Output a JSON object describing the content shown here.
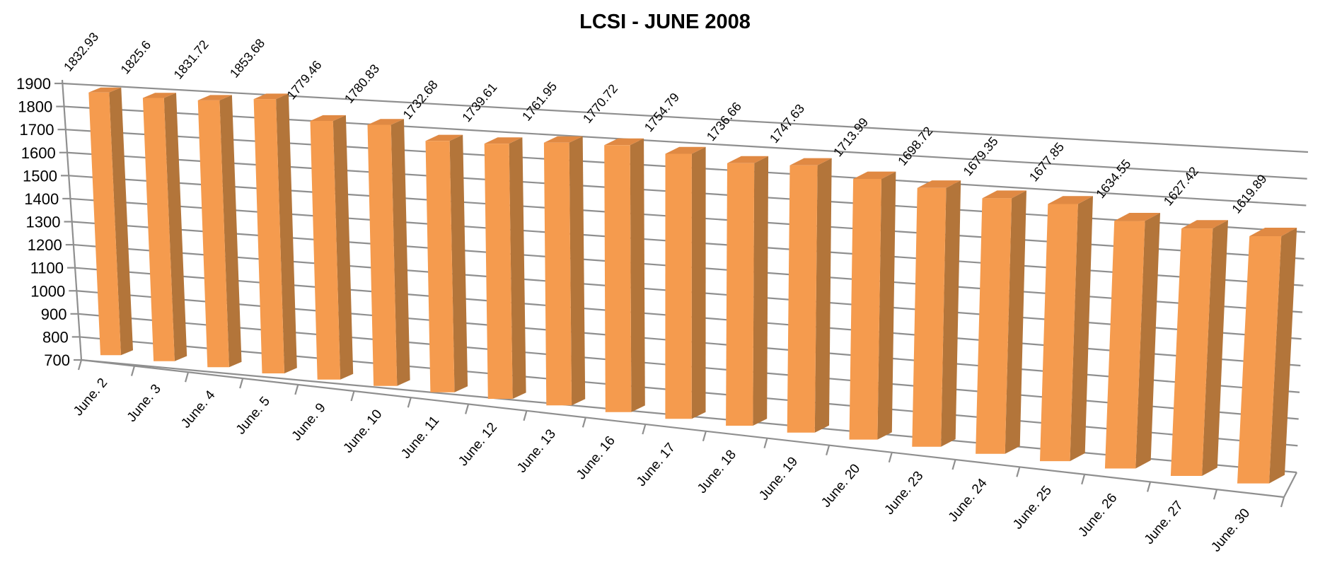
{
  "title": "LCSI - JUNE 2008",
  "chart_data": {
    "type": "bar",
    "variant": "3d-column",
    "title": "LCSI - JUNE 2008",
    "xlabel": "",
    "ylabel": "",
    "legend": "none",
    "grid": true,
    "ylim": [
      700,
      1900
    ],
    "ytick_step": 100,
    "yticks": [
      700,
      800,
      900,
      1000,
      1100,
      1200,
      1300,
      1400,
      1500,
      1600,
      1700,
      1800,
      1900
    ],
    "categories": [
      "June. 2",
      "June. 3",
      "June. 4",
      "June. 5",
      "June. 9",
      "June. 10",
      "June. 11",
      "June. 12",
      "June. 13",
      "June. 16",
      "June. 17",
      "June. 18",
      "June. 19",
      "June. 20",
      "June. 23",
      "June. 24",
      "June. 25",
      "June. 26",
      "June. 27",
      "June. 30"
    ],
    "values": [
      1832.93,
      1825.6,
      1831.72,
      1853.68,
      1779.46,
      1780.83,
      1732.68,
      1739.61,
      1761.95,
      1770.72,
      1754.79,
      1736.66,
      1747.63,
      1713.99,
      1698.72,
      1679.35,
      1677.85,
      1634.55,
      1627.42,
      1619.89
    ],
    "style": {
      "bar_front": "#F59B4E",
      "bar_side": "#B3753A",
      "bar_top": "#E08943",
      "gridline": "#8F8F8F",
      "axis": "#8F8F8F",
      "text": "#000000",
      "background": "#FFFFFF"
    }
  }
}
